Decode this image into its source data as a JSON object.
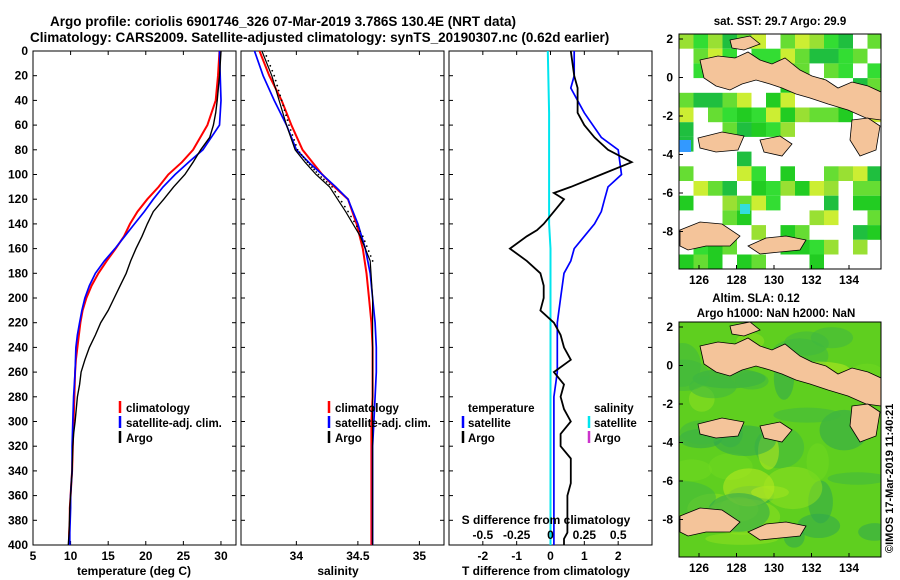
{
  "figure": {
    "title_line1": "Argo profile: coriolis 6901746_326 07-Mar-2019 3.786S 130.4E (NRT data)",
    "title_line2": "Climatology: CARS2009. Satellite-adjusted climatology: synTS_20190307.nc (0.62d earlier)",
    "credit": "©IMOS 17-Mar-2019 11:40:21"
  },
  "colors": {
    "climatology": "#ff0000",
    "satellite": "#0000ff",
    "argo": "#000000",
    "salinity_satellite": "#00e5ee",
    "salinity_argo": "#cc33cc",
    "land": "#f4c49a",
    "sst_cell": "#22cc22",
    "sla_field": "#5fcf1f"
  },
  "depth_axis": {
    "ylim": [
      0,
      400
    ],
    "ticks": [
      "0",
      "20",
      "40",
      "60",
      "80",
      "100",
      "120",
      "140",
      "160",
      "180",
      "200",
      "220",
      "240",
      "260",
      "280",
      "300",
      "320",
      "340",
      "360",
      "380",
      "400"
    ]
  },
  "chart_data": [
    {
      "id": "temperature",
      "type": "line",
      "xlabel": "temperature (deg C)",
      "xlim": [
        5,
        32
      ],
      "ylim": [
        0,
        400
      ],
      "xticks": [
        "5",
        "10",
        "15",
        "20",
        "25",
        "30"
      ],
      "legend": [
        "climatology",
        "satellite-adj. clim.",
        "Argo"
      ],
      "series": [
        {
          "name": "climatology",
          "color": "#ff0000",
          "x": [
            29.8,
            29.6,
            29.3,
            28.2,
            26.3,
            24.8,
            23,
            21.7,
            20.2,
            18.9,
            17.9,
            17.1,
            16,
            14.8,
            13.7,
            12.8,
            12.1,
            11.6,
            11.3,
            11.1,
            10.9,
            10.7,
            10.6,
            10.5,
            10.4,
            10.3,
            10.2,
            10.1,
            10.0,
            9.9,
            9.9,
            9.8,
            9.8
          ],
          "y": [
            0,
            20,
            40,
            60,
            80,
            90,
            100,
            110,
            120,
            130,
            140,
            150,
            160,
            170,
            180,
            190,
            200,
            210,
            220,
            230,
            240,
            250,
            260,
            280,
            300,
            320,
            340,
            350,
            360,
            370,
            380,
            390,
            400
          ]
        },
        {
          "name": "satellite-adj. clim.",
          "color": "#0000ff",
          "x": [
            29.8,
            29.9,
            30.0,
            29.8,
            27.6,
            25.7,
            23.9,
            22.3,
            21,
            19.8,
            18.5,
            17.2,
            15.9,
            14.5,
            13.3,
            12.5,
            11.9,
            11.5,
            11.2,
            10.9,
            10.7,
            10.6,
            10.4,
            10.3,
            10.2,
            10.2,
            10.1,
            10.0,
            10.0,
            9.9,
            9.9
          ],
          "y": [
            0,
            20,
            40,
            60,
            80,
            90,
            100,
            110,
            120,
            130,
            140,
            150,
            160,
            170,
            180,
            190,
            200,
            210,
            220,
            230,
            240,
            260,
            280,
            300,
            320,
            340,
            350,
            360,
            370,
            390,
            400
          ]
        },
        {
          "name": "Argo",
          "color": "#000000",
          "x": [
            30.0,
            29.8,
            29.5,
            29.3,
            29.0,
            28.5,
            27.3,
            26.3,
            25.2,
            23.7,
            22.4,
            21.0,
            20.2,
            19.5,
            18.7,
            18.0,
            17.4,
            16.6,
            15.8,
            15.0,
            14.0,
            13.3,
            12.5,
            11.9,
            11.4,
            11.2,
            10.9,
            10.6,
            10.4,
            10.3,
            10.2,
            10.1,
            10.0,
            9.9,
            9.8,
            9.7
          ],
          "y": [
            0,
            20,
            40,
            50,
            60,
            70,
            80,
            90,
            100,
            110,
            120,
            130,
            140,
            150,
            160,
            170,
            180,
            190,
            200,
            210,
            220,
            230,
            240,
            250,
            260,
            270,
            280,
            300,
            310,
            320,
            340,
            350,
            360,
            370,
            390,
            400
          ]
        }
      ]
    },
    {
      "id": "salinity",
      "type": "line",
      "xlabel": "salinity",
      "xlim": [
        33.55,
        35.2
      ],
      "ylim": [
        0,
        400
      ],
      "xticks": [
        "34",
        "34.5",
        "35"
      ],
      "legend": [
        "climatology",
        "satellite-adj. clim.",
        "Argo"
      ],
      "series": [
        {
          "name": "climatology",
          "color": "#ff0000",
          "x": [
            33.7,
            33.78,
            33.88,
            33.96,
            34.05,
            34.13,
            34.21,
            34.31,
            34.42,
            34.49,
            34.54,
            34.57,
            34.59,
            34.61,
            34.62,
            34.62,
            34.62,
            34.61,
            34.61,
            34.61,
            34.61,
            34.61
          ],
          "y": [
            0,
            20,
            40,
            60,
            80,
            90,
            100,
            110,
            120,
            140,
            160,
            180,
            200,
            220,
            240,
            260,
            280,
            300,
            320,
            340,
            370,
            400
          ]
        },
        {
          "name": "satellite-adj. clim.",
          "color": "#0000ff",
          "x": [
            33.66,
            33.73,
            33.82,
            33.92,
            34.0,
            34.1,
            34.21,
            34.32,
            34.42,
            34.5,
            34.56,
            34.6,
            34.62,
            34.64,
            34.65,
            34.65,
            34.64,
            34.63,
            34.62,
            34.62,
            34.62,
            34.62
          ],
          "y": [
            0,
            20,
            40,
            60,
            80,
            90,
            100,
            110,
            120,
            140,
            160,
            180,
            200,
            220,
            240,
            260,
            280,
            300,
            320,
            340,
            370,
            400
          ]
        },
        {
          "name": "Argo",
          "color": "#000000",
          "x": [
            33.72,
            33.8,
            33.86,
            33.92,
            33.99,
            34.07,
            34.16,
            34.27,
            34.4,
            34.52,
            34.6,
            34.62,
            34.62,
            34.62,
            34.62,
            34.62
          ],
          "y": [
            0,
            20,
            40,
            60,
            80,
            90,
            100,
            110,
            130,
            150,
            170,
            200,
            240,
            300,
            350,
            400
          ]
        }
      ]
    },
    {
      "id": "difference",
      "type": "line",
      "xlabel": "T difference from climatology",
      "x2label": "S difference from climatology",
      "xlim": [
        -3,
        3
      ],
      "x2lim": [
        -0.75,
        0.75
      ],
      "ylim": [
        0,
        400
      ],
      "xticks": [
        "-2",
        "-1",
        "0",
        "1",
        "2"
      ],
      "x2ticks": [
        "-0.5",
        "-0.25",
        "0",
        "0.25",
        "0.5"
      ],
      "legend_temperature": [
        "temperature",
        "satellite",
        "Argo"
      ],
      "legend_salinity": [
        "salinity",
        "satellite",
        "Argo"
      ],
      "series": [
        {
          "name": "T satellite",
          "color": "#0000ff",
          "axis": "T",
          "x": [
            0.7,
            0.7,
            0.6,
            1.0,
            1.5,
            2.0,
            2.1,
            1.7,
            1.6,
            1.5,
            1.3,
            1.0,
            0.7,
            0.6,
            0.4,
            0.3,
            0.2,
            0.2,
            0.2,
            0.1,
            0.1,
            0.1,
            0.1,
            0.1,
            0.1,
            0.1,
            0.1
          ],
          "y": [
            0,
            20,
            30,
            50,
            70,
            80,
            100,
            110,
            120,
            130,
            140,
            150,
            160,
            170,
            180,
            200,
            220,
            240,
            260,
            280,
            300,
            320,
            340,
            360,
            380,
            390,
            400
          ]
        },
        {
          "name": "T Argo",
          "color": "#000000",
          "axis": "T",
          "x": [
            0.6,
            0.7,
            0.8,
            0.8,
            1.0,
            1.3,
            1.7,
            2.4,
            1.5,
            0.6,
            0.1,
            0.4,
            0.1,
            -0.2,
            -0.4,
            -0.7,
            -1.2,
            -0.7,
            -0.3,
            -0.2,
            -0.2,
            -0.3,
            0.1,
            0.3,
            0.4,
            0.6,
            0.1,
            0.4,
            0.3,
            0.4,
            0.6,
            0.3,
            0.3,
            0.6,
            0.6,
            0.6,
            0.5,
            0.5,
            0.5,
            0.5,
            0.4,
            0.4
          ],
          "y": [
            0,
            20,
            30,
            50,
            60,
            70,
            80,
            90,
            100,
            110,
            115,
            120,
            130,
            140,
            145,
            150,
            160,
            170,
            180,
            190,
            200,
            210,
            220,
            230,
            240,
            250,
            260,
            270,
            280,
            290,
            300,
            310,
            320,
            330,
            340,
            350,
            360,
            370,
            380,
            390,
            395,
            400
          ]
        },
        {
          "name": "S satellite",
          "color": "#00e5ee",
          "axis": "S",
          "x": [
            -0.02,
            -0.01,
            -0.01,
            -0.01,
            -0.01,
            0.0,
            0.0,
            0.0,
            0.0,
            0.0,
            0.0,
            0.0,
            0.0,
            0.0,
            0.0,
            0.0
          ],
          "y": [
            0,
            50,
            100,
            120,
            140,
            160,
            180,
            200,
            220,
            240,
            260,
            280,
            300,
            320,
            360,
            400
          ]
        }
      ]
    }
  ],
  "maps": [
    {
      "id": "sst-map",
      "title": "sat. SST: 29.7 Argo: 29.9",
      "xticks": [
        "126",
        "128",
        "130",
        "132",
        "134"
      ],
      "yticks": [
        "2",
        "0",
        "-2",
        "-4",
        "-6",
        "-8"
      ]
    },
    {
      "id": "sla-map",
      "title_line1": "Altim. SLA: 0.12",
      "title_line2": "Argo h1000: NaN h2000: NaN",
      "xticks": [
        "126",
        "128",
        "130",
        "132",
        "134"
      ],
      "yticks": [
        "2",
        "0",
        "-2",
        "-4",
        "-6",
        "-8"
      ]
    }
  ]
}
